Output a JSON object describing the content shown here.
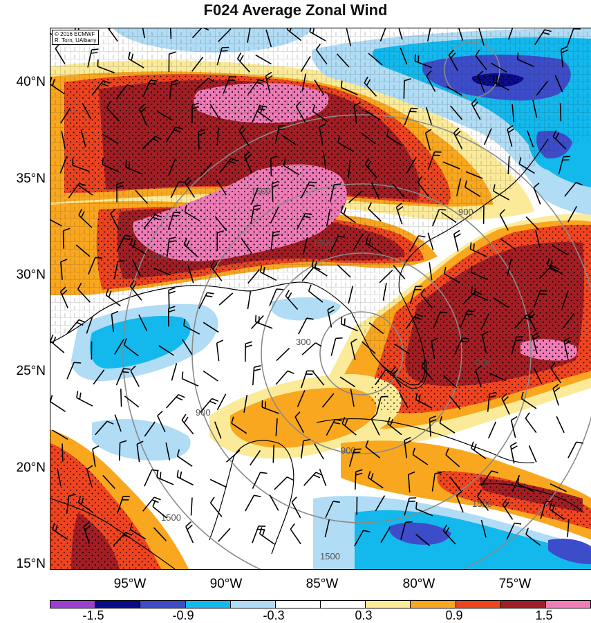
{
  "title": "F024 Average Zonal Wind",
  "credit": [
    "© 2016 ECMWF",
    "R. Torn, UAlbany"
  ],
  "latitude_labels": [
    "40°N",
    "35°N",
    "30°N",
    "25°N",
    "20°N",
    "15°N"
  ],
  "longitude_labels": [
    "95°W",
    "90°W",
    "85°W",
    "80°W",
    "75°W"
  ],
  "contour_labels": [
    "300",
    "900",
    "900",
    "900",
    "900",
    "1500",
    "1500",
    "1500",
    "1500",
    "1500",
    "1500"
  ],
  "colorbar": {
    "labels": [
      "-1.5",
      "-0.9",
      "-0.3",
      "0.3",
      "0.9",
      "1.5"
    ],
    "colors": [
      "#9a3fcf",
      "#0a0a8c",
      "#3d4cc9",
      "#13b8ec",
      "#b0dcf5",
      "#ffffff",
      "#ffffff",
      "#fbeb98",
      "#f9a71f",
      "#ee4420",
      "#a31e24",
      "#f07cb8"
    ]
  },
  "palette": {
    "pink": "#f07cb8",
    "darkred": "#a31e24",
    "red": "#ee4420",
    "orange": "#f9a71f",
    "yellow": "#fbeb98",
    "lightblue": "#b0dcf5",
    "cyan": "#13b8ec",
    "blue": "#3d4cc9",
    "navy": "#0a0a8c"
  }
}
